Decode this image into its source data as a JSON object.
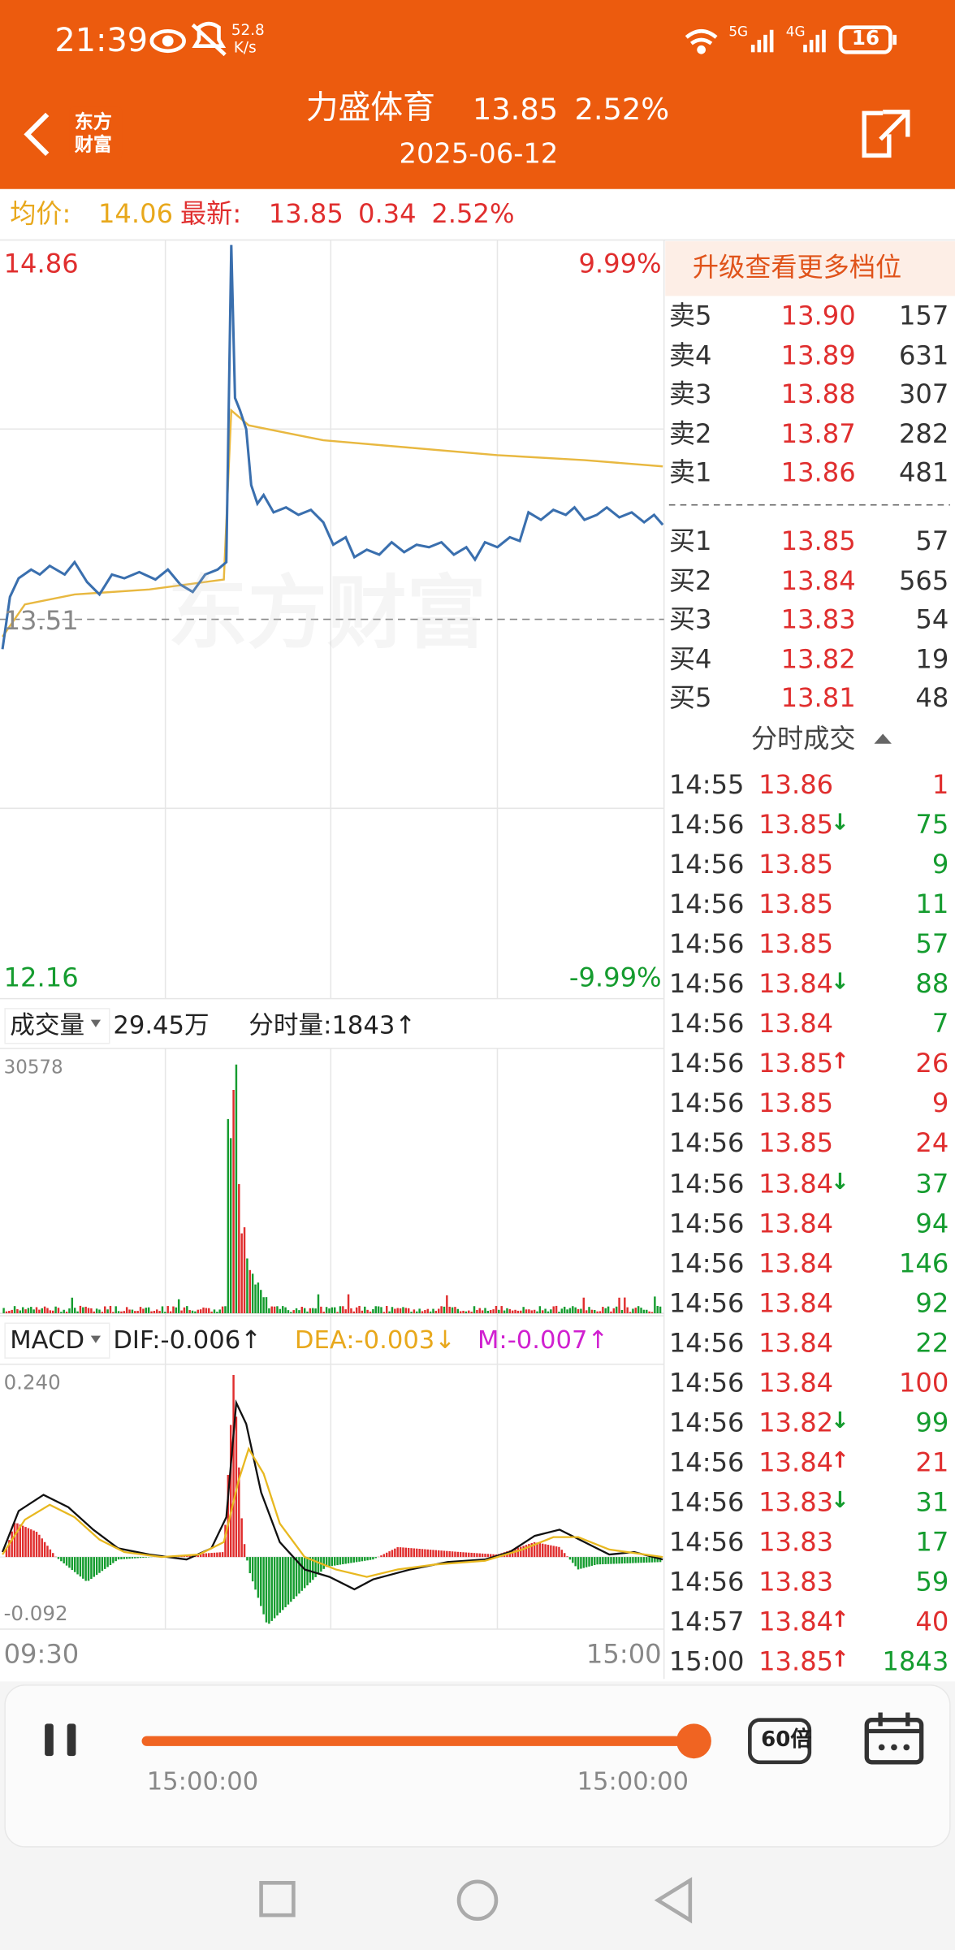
{
  "status_bar": {
    "time": "21:39",
    "net_speed": "52.8",
    "net_unit": "K/s",
    "signal_1": "5G",
    "signal_2": "4G",
    "battery": "16"
  },
  "header": {
    "logo_line1": "东方",
    "logo_line2": "财富",
    "name": "力盛体育",
    "price": "13.85",
    "change_pct": "2.52%",
    "date": "2025-06-12"
  },
  "quote_bar": {
    "avg_label": "均价:",
    "avg": "14.06",
    "last_label": "最新:",
    "last": "13.85",
    "change": "0.34",
    "change_pct": "2.52%"
  },
  "price_chart": {
    "high": "14.86",
    "high_pct": "9.99%",
    "low": "12.16",
    "low_pct": "-9.99%",
    "prev_close": "13.51",
    "watermark": "东方财富"
  },
  "volume_panel": {
    "selector": "成交量",
    "total": "29.45万",
    "tick_volume": "分时量:1843↑",
    "max": "30578"
  },
  "macd_panel": {
    "selector": "MACD",
    "dif": "DIF:-0.006↑",
    "dea": "DEA:-0.003↓",
    "m": "M:-0.007↑",
    "max": "0.240",
    "min": "-0.092"
  },
  "time_axis": {
    "start": "09:30",
    "end": "15:00"
  },
  "order_book": {
    "upgrade": "升级查看更多档位",
    "asks": [
      {
        "label": "卖5",
        "price": "13.90",
        "volume": "157"
      },
      {
        "label": "卖4",
        "price": "13.89",
        "volume": "631"
      },
      {
        "label": "卖3",
        "price": "13.88",
        "volume": "307"
      },
      {
        "label": "卖2",
        "price": "13.87",
        "volume": "282"
      },
      {
        "label": "卖1",
        "price": "13.86",
        "volume": "481"
      }
    ],
    "bids": [
      {
        "label": "买1",
        "price": "13.85",
        "volume": "57"
      },
      {
        "label": "买2",
        "price": "13.84",
        "volume": "565"
      },
      {
        "label": "买3",
        "price": "13.83",
        "volume": "54"
      },
      {
        "label": "买4",
        "price": "13.82",
        "volume": "19"
      },
      {
        "label": "买5",
        "price": "13.81",
        "volume": "48"
      }
    ]
  },
  "trades": {
    "title": "分时成交",
    "rows": [
      {
        "time": "14:55",
        "price": "13.86",
        "volume": "1",
        "volume_color": "#e02e2e"
      },
      {
        "time": "14:56",
        "price": "13.85",
        "arrow": "↓",
        "arrow_color": "#159c2f",
        "volume": "75",
        "volume_color": "#159c2f"
      },
      {
        "time": "14:56",
        "price": "13.85",
        "volume": "9",
        "volume_color": "#159c2f"
      },
      {
        "time": "14:56",
        "price": "13.85",
        "volume": "11",
        "volume_color": "#159c2f"
      },
      {
        "time": "14:56",
        "price": "13.85",
        "volume": "57",
        "volume_color": "#159c2f"
      },
      {
        "time": "14:56",
        "price": "13.84",
        "arrow": "↓",
        "arrow_color": "#159c2f",
        "volume": "88",
        "volume_color": "#159c2f"
      },
      {
        "time": "14:56",
        "price": "13.84",
        "volume": "7",
        "volume_color": "#159c2f"
      },
      {
        "time": "14:56",
        "price": "13.85",
        "arrow": "↑",
        "arrow_color": "#e02e2e",
        "volume": "26",
        "volume_color": "#e02e2e"
      },
      {
        "time": "14:56",
        "price": "13.85",
        "volume": "9",
        "volume_color": "#e02e2e"
      },
      {
        "time": "14:56",
        "price": "13.85",
        "volume": "24",
        "volume_color": "#e02e2e"
      },
      {
        "time": "14:56",
        "price": "13.84",
        "arrow": "↓",
        "arrow_color": "#159c2f",
        "volume": "37",
        "volume_color": "#159c2f"
      },
      {
        "time": "14:56",
        "price": "13.84",
        "volume": "94",
        "volume_color": "#159c2f"
      },
      {
        "time": "14:56",
        "price": "13.84",
        "volume": "146",
        "volume_color": "#159c2f"
      },
      {
        "time": "14:56",
        "price": "13.84",
        "volume": "92",
        "volume_color": "#159c2f"
      },
      {
        "time": "14:56",
        "price": "13.84",
        "volume": "22",
        "volume_color": "#159c2f"
      },
      {
        "time": "14:56",
        "price": "13.84",
        "volume": "100",
        "volume_color": "#e02e2e"
      },
      {
        "time": "14:56",
        "price": "13.82",
        "arrow": "↓",
        "arrow_color": "#159c2f",
        "volume": "99",
        "volume_color": "#159c2f"
      },
      {
        "time": "14:56",
        "price": "13.84",
        "arrow": "↑",
        "arrow_color": "#e02e2e",
        "volume": "21",
        "volume_color": "#e02e2e"
      },
      {
        "time": "14:56",
        "price": "13.83",
        "arrow": "↓",
        "arrow_color": "#159c2f",
        "volume": "31",
        "volume_color": "#159c2f"
      },
      {
        "time": "14:56",
        "price": "13.83",
        "volume": "17",
        "volume_color": "#159c2f"
      },
      {
        "time": "14:56",
        "price": "13.83",
        "volume": "59",
        "volume_color": "#159c2f"
      },
      {
        "time": "14:57",
        "price": "13.84",
        "arrow": "↑",
        "arrow_color": "#e02e2e",
        "volume": "40",
        "volume_color": "#e02e2e"
      },
      {
        "time": "15:00",
        "price": "13.85",
        "arrow": "↑",
        "arrow_color": "#e02e2e",
        "volume": "1843",
        "volume_color": "#159c2f"
      }
    ]
  },
  "player": {
    "speed": "60倍",
    "start": "15:00:00",
    "end": "15:00:00"
  }
}
